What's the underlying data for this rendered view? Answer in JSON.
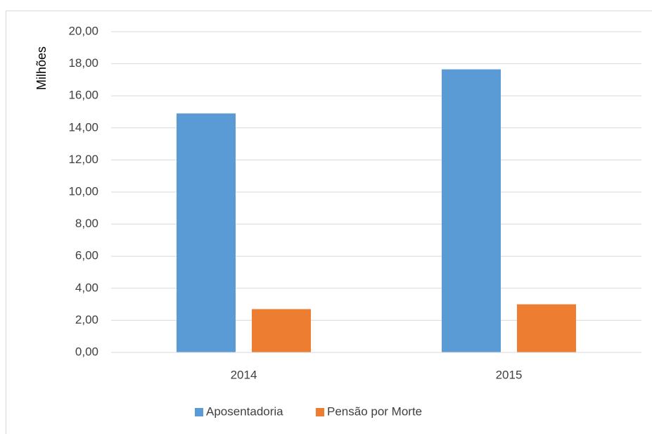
{
  "chart_data": {
    "type": "bar",
    "y_label": "Milhões",
    "categories": [
      "2014",
      "2015"
    ],
    "series": [
      {
        "name": "Aposentadoria",
        "color": "#5b9bd5",
        "values": [
          14.9,
          17.65
        ]
      },
      {
        "name": "Pensão por Morte",
        "color": "#ed7d31",
        "values": [
          2.7,
          3.0
        ]
      }
    ],
    "ylim": [
      0,
      20
    ],
    "yticks": [
      {
        "value": 0,
        "label": "0,00"
      },
      {
        "value": 2,
        "label": "2,00"
      },
      {
        "value": 4,
        "label": "4,00"
      },
      {
        "value": 6,
        "label": "6,00"
      },
      {
        "value": 8,
        "label": "8,00"
      },
      {
        "value": 10,
        "label": "10,00"
      },
      {
        "value": 12,
        "label": "12,00"
      },
      {
        "value": 14,
        "label": "14,00"
      },
      {
        "value": 16,
        "label": "16,00"
      },
      {
        "value": 18,
        "label": "18,00"
      },
      {
        "value": 20,
        "label": "20,00"
      }
    ],
    "grid": true,
    "legend": "bottom"
  }
}
